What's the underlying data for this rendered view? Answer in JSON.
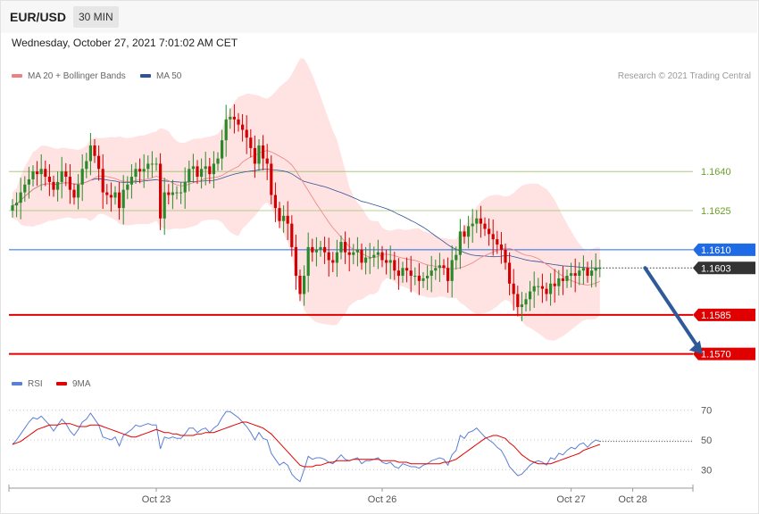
{
  "header": {
    "symbol": "EUR/USD",
    "timeframe": "30 MIN",
    "datetime": "Wednesday, October 27, 2021 7:01:02 AM CET",
    "credit": "Research © 2021 Trading Central"
  },
  "legend_main": [
    {
      "label": "MA 20 + Bollinger Bands",
      "color": "#f08080"
    },
    {
      "label": "MA 50",
      "color": "#2f5496"
    }
  ],
  "legend_rsi": [
    {
      "label": "RSI",
      "color": "#5b7fd6"
    },
    {
      "label": "9MA",
      "color": "#e00000"
    }
  ],
  "colors": {
    "bull": "#2a8a2a",
    "bear": "#d20000",
    "band_fill": "#ffe2e2",
    "ma20": "#f08080",
    "ma50": "#2f5496",
    "resistance": "#9bc46a",
    "pivot": "#1f6be6",
    "support": "#e00000",
    "last": "#333333",
    "arrow": "#2f5a9a"
  },
  "chart_data": [
    {
      "type": "candlestick",
      "symbol": "EUR/USD",
      "interval": "30 MIN",
      "ylim": [
        1.1562,
        1.1675
      ],
      "x_tick_labels": [
        {
          "label": "Oct 23",
          "index": 35
        },
        {
          "label": "Oct 26",
          "index": 90
        },
        {
          "label": "Oct 27",
          "index": 136
        },
        {
          "label": "Oct 28",
          "index": 151
        }
      ],
      "levels": [
        {
          "value": 1.164,
          "label": "1.1640",
          "role": "resistance"
        },
        {
          "value": 1.1625,
          "label": "1.1625",
          "role": "resistance"
        },
        {
          "value": 1.161,
          "label": "1.1610",
          "role": "pivot"
        },
        {
          "value": 1.1603,
          "label": "1.1603",
          "role": "last"
        },
        {
          "value": 1.1585,
          "label": "1.1585",
          "role": "support"
        },
        {
          "value": 1.157,
          "label": "1.1570",
          "role": "support"
        }
      ],
      "forecast_arrow": {
        "from_index": 154,
        "from_value": 1.1603,
        "to_index": 168,
        "to_value": 1.157
      },
      "close": [
        1.1627,
        1.1628,
        1.1632,
        1.1635,
        1.1637,
        1.164,
        1.1639,
        1.1641,
        1.1638,
        1.1636,
        1.1633,
        1.1636,
        1.164,
        1.1638,
        1.1633,
        1.163,
        1.1635,
        1.1641,
        1.1644,
        1.165,
        1.1646,
        1.1641,
        1.1632,
        1.1631,
        1.163,
        1.1632,
        1.1626,
        1.1633,
        1.1635,
        1.1638,
        1.1641,
        1.164,
        1.1641,
        1.1643,
        1.1643,
        1.1643,
        1.1622,
        1.1632,
        1.1631,
        1.1632,
        1.1632,
        1.1632,
        1.1636,
        1.1641,
        1.1642,
        1.1638,
        1.1641,
        1.1642,
        1.1639,
        1.1643,
        1.1645,
        1.1652,
        1.166,
        1.1661,
        1.166,
        1.1658,
        1.1656,
        1.1653,
        1.1649,
        1.1643,
        1.165,
        1.1645,
        1.1643,
        1.1631,
        1.1626,
        1.1621,
        1.1623,
        1.162,
        1.1611,
        1.16,
        1.1593,
        1.16,
        1.1611,
        1.1609,
        1.161,
        1.1611,
        1.1609,
        1.1606,
        1.1605,
        1.1609,
        1.1613,
        1.1609,
        1.1608,
        1.1609,
        1.161,
        1.1605,
        1.1607,
        1.1607,
        1.1608,
        1.1609,
        1.1606,
        1.1605,
        1.1606,
        1.1602,
        1.16,
        1.1603,
        1.1602,
        1.16,
        1.16,
        1.1598,
        1.1599,
        1.16,
        1.1602,
        1.1603,
        1.1604,
        1.1603,
        1.1598,
        1.1606,
        1.1608,
        1.1617,
        1.1615,
        1.1619,
        1.162,
        1.1622,
        1.162,
        1.1618,
        1.1616,
        1.1614,
        1.1612,
        1.161,
        1.1605,
        1.1597,
        1.1593,
        1.1588,
        1.1589,
        1.1591,
        1.1594,
        1.1596,
        1.1596,
        1.1595,
        1.1593,
        1.1597,
        1.1596,
        1.1599,
        1.1598,
        1.16,
        1.1601,
        1.16,
        1.1602,
        1.1603,
        1.16,
        1.1602,
        1.1603,
        1.1603
      ]
    },
    {
      "type": "line",
      "title": "RSI",
      "series": [
        {
          "name": "RSI"
        },
        {
          "name": "9MA"
        }
      ],
      "ylim": [
        20,
        80
      ],
      "y_ticks": [
        30,
        50,
        70
      ],
      "rsi": [
        47,
        50,
        54,
        58,
        62,
        65,
        64,
        66,
        63,
        60,
        56,
        60,
        64,
        61,
        56,
        53,
        57,
        62,
        64,
        68,
        64,
        60,
        52,
        51,
        50,
        52,
        46,
        53,
        55,
        57,
        60,
        59,
        60,
        61,
        60,
        60,
        44,
        52,
        51,
        52,
        51,
        51,
        54,
        58,
        58,
        55,
        57,
        58,
        55,
        58,
        60,
        65,
        69,
        69,
        67,
        65,
        62,
        59,
        55,
        50,
        55,
        51,
        50,
        41,
        37,
        33,
        35,
        33,
        27,
        24,
        22,
        30,
        39,
        37,
        38,
        38,
        37,
        35,
        34,
        37,
        40,
        37,
        36,
        37,
        38,
        34,
        36,
        36,
        37,
        38,
        35,
        34,
        35,
        32,
        31,
        34,
        33,
        32,
        32,
        31,
        33,
        34,
        36,
        37,
        38,
        37,
        33,
        40,
        43,
        53,
        51,
        55,
        56,
        58,
        55,
        52,
        50,
        48,
        45,
        43,
        38,
        32,
        29,
        26,
        27,
        30,
        33,
        35,
        36,
        35,
        33,
        38,
        37,
        41,
        40,
        43,
        45,
        44,
        47,
        48,
        45,
        48,
        50,
        49
      ],
      "rsi_9ma": [
        47,
        48,
        49,
        51,
        53,
        55,
        57,
        58,
        59,
        60,
        60,
        60,
        61,
        61,
        61,
        60,
        59,
        59,
        59,
        60,
        60,
        60,
        59,
        58,
        57,
        56,
        55,
        54,
        53,
        52,
        52,
        53,
        54,
        55,
        56,
        57,
        56,
        55,
        55,
        54,
        54,
        53,
        53,
        53,
        53,
        54,
        54,
        55,
        55,
        55,
        56,
        57,
        58,
        59,
        60,
        61,
        62,
        62,
        61,
        60,
        59,
        58,
        56,
        54,
        51,
        48,
        45,
        42,
        39,
        36,
        33,
        32,
        32,
        32,
        33,
        33,
        34,
        35,
        35,
        36,
        36,
        36,
        36,
        37,
        37,
        37,
        37,
        37,
        37,
        37,
        36,
        36,
        36,
        36,
        35,
        35,
        35,
        34,
        34,
        34,
        34,
        34,
        34,
        34,
        34,
        35,
        35,
        36,
        37,
        39,
        41,
        43,
        45,
        47,
        49,
        51,
        52,
        53,
        53,
        52,
        51,
        48,
        46,
        43,
        40,
        38,
        36,
        35,
        34,
        34,
        34,
        34,
        35,
        36,
        37,
        38,
        39,
        40,
        41,
        43,
        44,
        45,
        46,
        47
      ]
    }
  ]
}
